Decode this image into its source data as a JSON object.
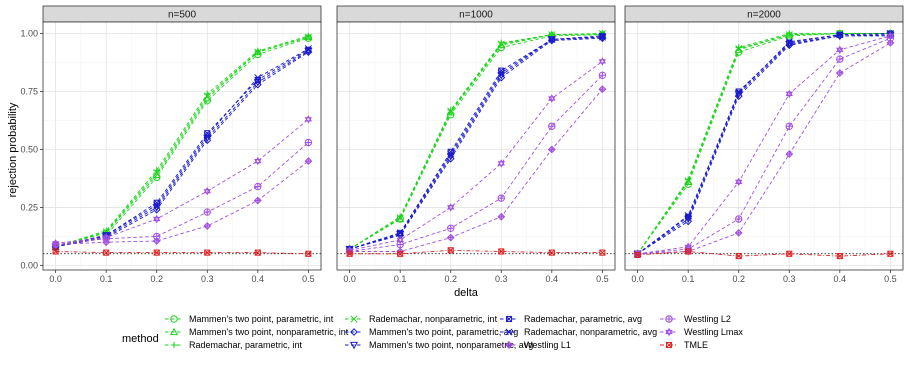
{
  "chart_data": {
    "type": "line",
    "xlabel": "delta",
    "ylabel": "rejection probability",
    "x": [
      0.0,
      0.1,
      0.2,
      0.3,
      0.4,
      0.5
    ],
    "x_tick_labels": [
      "0.0",
      "0.1",
      "0.2",
      "0.3",
      "0.4",
      "0.5"
    ],
    "y_ticks": [
      0.0,
      0.25,
      0.5,
      0.75,
      1.0
    ],
    "y_tick_labels": [
      "0.00",
      "0.25",
      "0.50",
      "0.75",
      "1.00"
    ],
    "xlim": [
      -0.025,
      0.525
    ],
    "ylim": [
      -0.02,
      1.05
    ],
    "reference_line": 0.05,
    "grid": true,
    "legend": {
      "title": "method",
      "position": "bottom",
      "items": [
        {
          "label": "Mammen's two point, parametric, int",
          "color": "#1fd41f",
          "shape": "circle"
        },
        {
          "label": "Mammen's two point, nonparametric, int",
          "color": "#1fd41f",
          "shape": "triangle-up"
        },
        {
          "label": "Rademachar, parametric, int",
          "color": "#1fd41f",
          "shape": "plus"
        },
        {
          "label": "Rademachar, nonparametric, int",
          "color": "#1fd41f",
          "shape": "cross"
        },
        {
          "label": "Mammen's two point, parametric, avg",
          "color": "#1a1acc",
          "shape": "diamond"
        },
        {
          "label": "Mammen's two point, nonparametric, avg",
          "color": "#1a1acc",
          "shape": "triangle-down"
        },
        {
          "label": "Rademachar, parametric, avg",
          "color": "#1a1acc",
          "shape": "square-cross"
        },
        {
          "label": "Rademachar, nonparametric, avg",
          "color": "#1a1acc",
          "shape": "asterisk"
        },
        {
          "label": "Westling L1",
          "color": "#a14fe0",
          "shape": "diamond-plus"
        },
        {
          "label": "Westling L2",
          "color": "#a14fe0",
          "shape": "circle-plus"
        },
        {
          "label": "Westling Lmax",
          "color": "#a14fe0",
          "shape": "star-of-david"
        },
        {
          "label": "TMLE",
          "color": "#e01f1f",
          "shape": "square-cross"
        }
      ]
    },
    "panels": [
      {
        "title": "n=500",
        "series": [
          {
            "name": "Mammen's two point, parametric, int",
            "values": [
              0.08,
              0.13,
              0.38,
              0.71,
              0.91,
              0.98
            ]
          },
          {
            "name": "Mammen's two point, nonparametric, int",
            "values": [
              0.08,
              0.14,
              0.39,
              0.72,
              0.92,
              0.985
            ]
          },
          {
            "name": "Rademachar, parametric, int",
            "values": [
              0.08,
              0.15,
              0.41,
              0.74,
              0.925,
              0.99
            ]
          },
          {
            "name": "Rademachar, nonparametric, int",
            "values": [
              0.08,
              0.145,
              0.4,
              0.73,
              0.92,
              0.985
            ]
          },
          {
            "name": "Mammen's two point, parametric, avg",
            "values": [
              0.08,
              0.12,
              0.24,
              0.54,
              0.78,
              0.92
            ]
          },
          {
            "name": "Mammen's two point, nonparametric, avg",
            "values": [
              0.08,
              0.125,
              0.25,
              0.55,
              0.79,
              0.925
            ]
          },
          {
            "name": "Rademachar, parametric, avg",
            "values": [
              0.08,
              0.13,
              0.27,
              0.57,
              0.8,
              0.93
            ]
          },
          {
            "name": "Rademachar, nonparametric, avg",
            "values": [
              0.08,
              0.13,
              0.26,
              0.56,
              0.81,
              0.935
            ]
          },
          {
            "name": "Westling L1",
            "values": [
              0.09,
              0.1,
              0.105,
              0.17,
              0.28,
              0.45
            ]
          },
          {
            "name": "Westling L2",
            "values": [
              0.09,
              0.115,
              0.125,
              0.23,
              0.34,
              0.53
            ]
          },
          {
            "name": "Westling Lmax",
            "values": [
              0.095,
              0.12,
              0.2,
              0.32,
              0.45,
              0.63
            ]
          },
          {
            "name": "TMLE",
            "values": [
              0.06,
              0.055,
              0.055,
              0.055,
              0.055,
              0.05
            ]
          }
        ]
      },
      {
        "title": "n=1000",
        "series": [
          {
            "name": "Mammen's two point, parametric, int",
            "values": [
              0.07,
              0.2,
              0.65,
              0.94,
              0.99,
              0.995
            ]
          },
          {
            "name": "Mammen's two point, nonparametric, int",
            "values": [
              0.07,
              0.2,
              0.66,
              0.95,
              0.995,
              0.995
            ]
          },
          {
            "name": "Rademachar, parametric, int",
            "values": [
              0.07,
              0.21,
              0.67,
              0.96,
              0.995,
              1.0
            ]
          },
          {
            "name": "Rademachar, nonparametric, int",
            "values": [
              0.07,
              0.205,
              0.665,
              0.955,
              0.995,
              1.0
            ]
          },
          {
            "name": "Mammen's two point, parametric, avg",
            "values": [
              0.07,
              0.13,
              0.46,
              0.81,
              0.97,
              0.98
            ]
          },
          {
            "name": "Mammen's two point, nonparametric, avg",
            "values": [
              0.07,
              0.135,
              0.47,
              0.82,
              0.975,
              0.985
            ]
          },
          {
            "name": "Rademachar, parametric, avg",
            "values": [
              0.07,
              0.14,
              0.49,
              0.84,
              0.975,
              0.99
            ]
          },
          {
            "name": "Rademachar, nonparametric, avg",
            "values": [
              0.07,
              0.14,
              0.48,
              0.83,
              0.975,
              0.985
            ]
          },
          {
            "name": "Westling L1",
            "values": [
              0.06,
              0.06,
              0.12,
              0.21,
              0.5,
              0.76
            ]
          },
          {
            "name": "Westling L2",
            "values": [
              0.06,
              0.09,
              0.16,
              0.29,
              0.6,
              0.82
            ]
          },
          {
            "name": "Westling Lmax",
            "values": [
              0.065,
              0.11,
              0.25,
              0.44,
              0.72,
              0.88
            ]
          },
          {
            "name": "TMLE",
            "values": [
              0.05,
              0.05,
              0.065,
              0.06,
              0.055,
              0.055
            ]
          }
        ]
      },
      {
        "title": "n=2000",
        "series": [
          {
            "name": "Mammen's two point, parametric, int",
            "values": [
              0.05,
              0.35,
              0.92,
              0.99,
              1.0,
              1.0
            ]
          },
          {
            "name": "Mammen's two point, nonparametric, int",
            "values": [
              0.05,
              0.36,
              0.93,
              0.995,
              1.0,
              1.0
            ]
          },
          {
            "name": "Rademachar, parametric, int",
            "values": [
              0.05,
              0.37,
              0.94,
              1.0,
              1.0,
              1.0
            ]
          },
          {
            "name": "Rademachar, nonparametric, int",
            "values": [
              0.05,
              0.365,
              0.935,
              0.995,
              1.0,
              1.0
            ]
          },
          {
            "name": "Mammen's two point, parametric, avg",
            "values": [
              0.05,
              0.19,
              0.73,
              0.95,
              0.99,
              0.99
            ]
          },
          {
            "name": "Mammen's two point, nonparametric, avg",
            "values": [
              0.05,
              0.2,
              0.74,
              0.955,
              0.99,
              0.995
            ]
          },
          {
            "name": "Rademachar, parametric, avg",
            "values": [
              0.05,
              0.21,
              0.75,
              0.96,
              0.995,
              1.0
            ]
          },
          {
            "name": "Rademachar, nonparametric, avg",
            "values": [
              0.05,
              0.215,
              0.745,
              0.965,
              0.995,
              1.0
            ]
          },
          {
            "name": "Westling L1",
            "values": [
              0.05,
              0.06,
              0.14,
              0.48,
              0.83,
              0.96
            ]
          },
          {
            "name": "Westling L2",
            "values": [
              0.05,
              0.07,
              0.2,
              0.6,
              0.89,
              0.98
            ]
          },
          {
            "name": "Westling Lmax",
            "values": [
              0.05,
              0.08,
              0.36,
              0.74,
              0.93,
              0.99
            ]
          },
          {
            "name": "TMLE",
            "values": [
              0.045,
              0.06,
              0.04,
              0.05,
              0.04,
              0.05
            ]
          }
        ]
      }
    ]
  }
}
